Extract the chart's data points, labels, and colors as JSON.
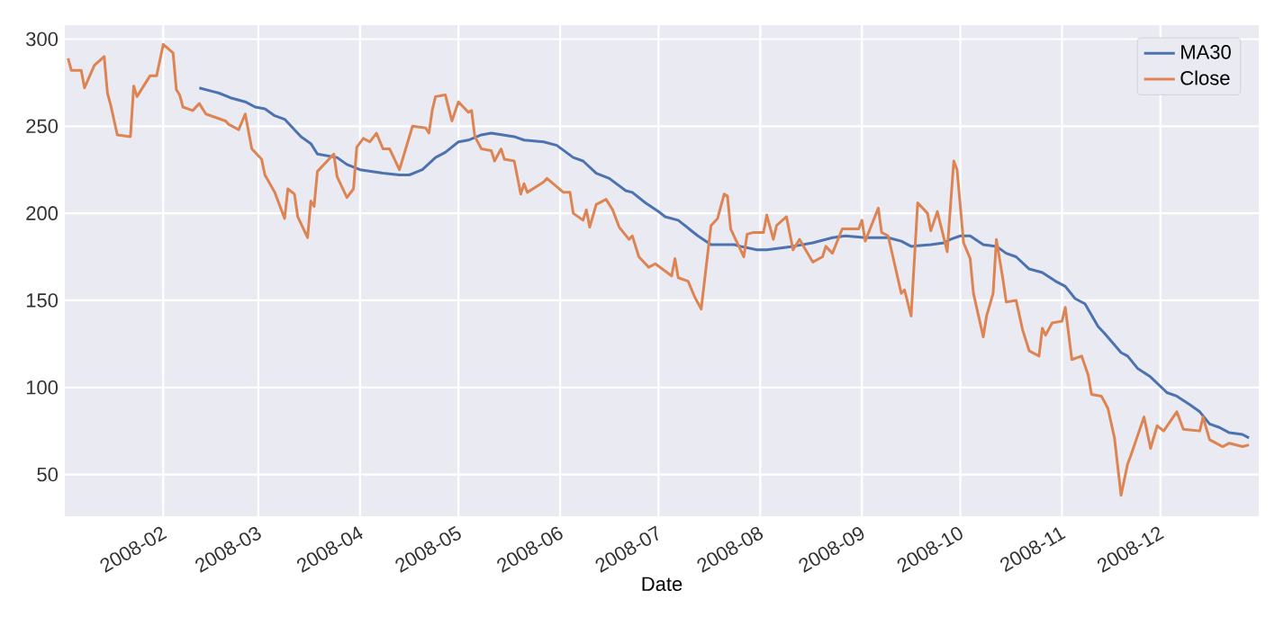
{
  "chart_data": {
    "type": "line",
    "xlabel": "Date",
    "xlim": [
      "2008-01-02",
      "2008-12-31"
    ],
    "ylim": [
      26,
      308
    ],
    "xticks": [
      "2008-02",
      "2008-03",
      "2008-04",
      "2008-05",
      "2008-06",
      "2008-07",
      "2008-08",
      "2008-09",
      "2008-10",
      "2008-11",
      "2008-12"
    ],
    "yticks": [
      50,
      100,
      150,
      200,
      250,
      300
    ],
    "grid": true,
    "legend": "top right",
    "line_style": "solid",
    "series": [
      {
        "name": "MA30",
        "color": "#4c72b0",
        "x": [
          "2008-02-12",
          "2008-02-16",
          "2008-02-18",
          "2008-02-22",
          "2008-02-26",
          "2008-02-29",
          "2008-03-03",
          "2008-03-06",
          "2008-03-09",
          "2008-03-14",
          "2008-03-17",
          "2008-03-19",
          "2008-03-25",
          "2008-03-28",
          "2008-04-01",
          "2008-04-08",
          "2008-04-13",
          "2008-04-16",
          "2008-04-20",
          "2008-04-24",
          "2008-04-27",
          "2008-05-01",
          "2008-05-04",
          "2008-05-08",
          "2008-05-11",
          "2008-05-18",
          "2008-05-21",
          "2008-05-27",
          "2008-05-31",
          "2008-06-05",
          "2008-06-08",
          "2008-06-12",
          "2008-06-16",
          "2008-06-21",
          "2008-06-23",
          "2008-06-27",
          "2008-07-01",
          "2008-07-03",
          "2008-07-07",
          "2008-07-11",
          "2008-07-13",
          "2008-07-17",
          "2008-07-21",
          "2008-07-24",
          "2008-07-26",
          "2008-07-31",
          "2008-08-03",
          "2008-08-11",
          "2008-08-17",
          "2008-08-23",
          "2008-08-27",
          "2008-09-02",
          "2008-09-09",
          "2008-09-13",
          "2008-09-16",
          "2008-09-22",
          "2008-09-26",
          "2008-09-28",
          "2008-10-01",
          "2008-10-04",
          "2008-10-08",
          "2008-10-12",
          "2008-10-15",
          "2008-10-18",
          "2008-10-22",
          "2008-10-26",
          "2008-10-30",
          "2008-11-02",
          "2008-11-05",
          "2008-11-08",
          "2008-11-12",
          "2008-11-14",
          "2008-11-19",
          "2008-11-21",
          "2008-11-24",
          "2008-11-28",
          "2008-12-03",
          "2008-12-06",
          "2008-12-10",
          "2008-12-13",
          "2008-12-16",
          "2008-12-19",
          "2008-12-22",
          "2008-12-26",
          "2008-12-28"
        ],
        "values": [
          272,
          270,
          269,
          266,
          264,
          261,
          260,
          256,
          254,
          244,
          240,
          234,
          232,
          228,
          225,
          223,
          222,
          222,
          225,
          232,
          235,
          241,
          242,
          245,
          246,
          244,
          242,
          241,
          239,
          232,
          230,
          223,
          220,
          213,
          212,
          206,
          201,
          198,
          196,
          190,
          187,
          182,
          182,
          182,
          181,
          179,
          179,
          181,
          183,
          186,
          187,
          186,
          186,
          184,
          181,
          182,
          183,
          185,
          187,
          187,
          182,
          181,
          177,
          175,
          168,
          166,
          161,
          158,
          151,
          148,
          135,
          131,
          120,
          118,
          111,
          106,
          97,
          95,
          90,
          86,
          79,
          77,
          74,
          73,
          71
        ]
      },
      {
        "name": "Close",
        "color": "#dd8452",
        "x": [
          "2008-01-03",
          "2008-01-04",
          "2008-01-07",
          "2008-01-08",
          "2008-01-11",
          "2008-01-14",
          "2008-01-15",
          "2008-01-16",
          "2008-01-18",
          "2008-01-22",
          "2008-01-23",
          "2008-01-24",
          "2008-01-28",
          "2008-01-30",
          "2008-02-01",
          "2008-02-04",
          "2008-02-05",
          "2008-02-06",
          "2008-02-07",
          "2008-02-10",
          "2008-02-12",
          "2008-02-14",
          "2008-02-17",
          "2008-02-20",
          "2008-02-21",
          "2008-02-24",
          "2008-02-26",
          "2008-02-28",
          "2008-03-02",
          "2008-03-03",
          "2008-03-06",
          "2008-03-09",
          "2008-03-10",
          "2008-03-12",
          "2008-03-13",
          "2008-03-16",
          "2008-03-17",
          "2008-03-18",
          "2008-03-19",
          "2008-03-24",
          "2008-03-25",
          "2008-03-28",
          "2008-03-30",
          "2008-03-31",
          "2008-04-02",
          "2008-04-04",
          "2008-04-06",
          "2008-04-08",
          "2008-04-10",
          "2008-04-13",
          "2008-04-17",
          "2008-04-21",
          "2008-04-22",
          "2008-04-23",
          "2008-04-24",
          "2008-04-27",
          "2008-04-29",
          "2008-05-01",
          "2008-05-04",
          "2008-05-05",
          "2008-05-06",
          "2008-05-08",
          "2008-05-11",
          "2008-05-12",
          "2008-05-14",
          "2008-05-15",
          "2008-05-18",
          "2008-05-20",
          "2008-05-21",
          "2008-05-22",
          "2008-05-27",
          "2008-05-28",
          "2008-06-02",
          "2008-06-04",
          "2008-06-05",
          "2008-06-08",
          "2008-06-09",
          "2008-06-10",
          "2008-06-12",
          "2008-06-15",
          "2008-06-17",
          "2008-06-19",
          "2008-06-22",
          "2008-06-23",
          "2008-06-25",
          "2008-06-28",
          "2008-06-30",
          "2008-07-05",
          "2008-07-06",
          "2008-07-07",
          "2008-07-10",
          "2008-07-12",
          "2008-07-14",
          "2008-07-17",
          "2008-07-19",
          "2008-07-21",
          "2008-07-22",
          "2008-07-23",
          "2008-07-24",
          "2008-07-27",
          "2008-07-28",
          "2008-07-30",
          "2008-08-02",
          "2008-08-03",
          "2008-08-05",
          "2008-08-06",
          "2008-08-09",
          "2008-08-11",
          "2008-08-13",
          "2008-08-17",
          "2008-08-20",
          "2008-08-21",
          "2008-08-23",
          "2008-08-26",
          "2008-08-31",
          "2008-09-01",
          "2008-09-02",
          "2008-09-06",
          "2008-09-07",
          "2008-09-09",
          "2008-09-13",
          "2008-09-14",
          "2008-09-16",
          "2008-09-18",
          "2008-09-21",
          "2008-09-22",
          "2008-09-24",
          "2008-09-27",
          "2008-09-29",
          "2008-09-30",
          "2008-10-02",
          "2008-10-04",
          "2008-10-05",
          "2008-10-08",
          "2008-10-09",
          "2008-10-11",
          "2008-10-12",
          "2008-10-14",
          "2008-10-15",
          "2008-10-18",
          "2008-10-20",
          "2008-10-22",
          "2008-10-25",
          "2008-10-26",
          "2008-10-27",
          "2008-10-29",
          "2008-11-01",
          "2008-11-02",
          "2008-11-04",
          "2008-11-07",
          "2008-11-09",
          "2008-11-10",
          "2008-11-13",
          "2008-11-15",
          "2008-11-17",
          "2008-11-19",
          "2008-11-21",
          "2008-11-22",
          "2008-11-26",
          "2008-11-28",
          "2008-11-30",
          "2008-12-02",
          "2008-12-06",
          "2008-12-08",
          "2008-12-13",
          "2008-12-14",
          "2008-12-16",
          "2008-12-20",
          "2008-12-22",
          "2008-12-26",
          "2008-12-28"
        ],
        "values": [
          289,
          282,
          282,
          272,
          285,
          290,
          269,
          262,
          245,
          244,
          273,
          267,
          279,
          279,
          297,
          292,
          271,
          268,
          261,
          259,
          263,
          257,
          255,
          253,
          251,
          248,
          257,
          237,
          231,
          222,
          212,
          197,
          214,
          211,
          198,
          186,
          207,
          204,
          224,
          234,
          221,
          209,
          214,
          238,
          243,
          241,
          246,
          237,
          237,
          225,
          250,
          249,
          246,
          259,
          267,
          268,
          253,
          264,
          258,
          259,
          244,
          237,
          236,
          230,
          237,
          231,
          230,
          211,
          217,
          212,
          218,
          220,
          212,
          212,
          200,
          196,
          202,
          192,
          205,
          208,
          202,
          192,
          185,
          187,
          175,
          169,
          171,
          164,
          174,
          163,
          161,
          152,
          145,
          193,
          197,
          211,
          210,
          191,
          187,
          175,
          188,
          189,
          189,
          199,
          185,
          193,
          198,
          179,
          185,
          172,
          175,
          181,
          177,
          191,
          191,
          196,
          184,
          203,
          189,
          187,
          154,
          156,
          141,
          206,
          200,
          190,
          201,
          178,
          230,
          225,
          183,
          174,
          154,
          129,
          141,
          154,
          185,
          162,
          149,
          150,
          133,
          121,
          118,
          134,
          130,
          137,
          138,
          146,
          116,
          118,
          107,
          96,
          95,
          88,
          71,
          38,
          56,
          61,
          83,
          65,
          78,
          75,
          86,
          76,
          75,
          83,
          70,
          66,
          68,
          66,
          67
        ]
      }
    ]
  }
}
